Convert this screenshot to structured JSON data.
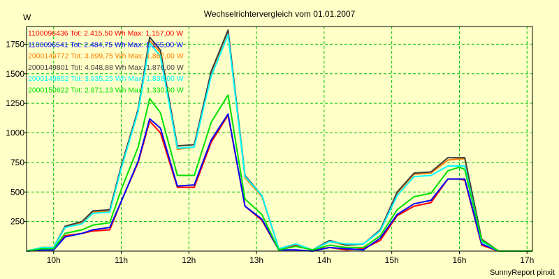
{
  "chart_data": {
    "type": "line",
    "title": "Wechselrichtervergleich vom 01.01.2007",
    "ylabel": "W",
    "xlabel": "",
    "ylim": [
      0,
      1900
    ],
    "xlim": [
      9.6,
      17.08
    ],
    "grid": true,
    "legend_position": "top-left",
    "credit": "SunnyReport pinxit",
    "x_ticks": [
      {
        "value": 10,
        "label": "10h"
      },
      {
        "value": 11,
        "label": "11h"
      },
      {
        "value": 12,
        "label": "12h"
      },
      {
        "value": 13,
        "label": "13h"
      },
      {
        "value": 14,
        "label": "14h"
      },
      {
        "value": 15,
        "label": "15h"
      },
      {
        "value": 16,
        "label": "16h"
      },
      {
        "value": 17,
        "label": "17h"
      }
    ],
    "y_ticks": [
      250,
      500,
      750,
      1000,
      1250,
      1500,
      1750
    ],
    "x": [
      9.6,
      9.83,
      10.0,
      10.17,
      10.42,
      10.58,
      10.83,
      11.0,
      11.25,
      11.42,
      11.58,
      11.83,
      12.08,
      12.33,
      12.58,
      12.83,
      13.08,
      13.33,
      13.58,
      13.83,
      14.08,
      14.33,
      14.58,
      14.83,
      15.08,
      15.33,
      15.58,
      15.83,
      16.0,
      16.08,
      16.33,
      16.58,
      16.83,
      17.08
    ],
    "series": [
      {
        "name": "1100096436",
        "legend": "1100096436 Tot: 2.415,50 Wh Max: 1.157,00 W",
        "color": "#ff0000",
        "values": [
          0,
          20,
          20,
          130,
          150,
          170,
          180,
          420,
          750,
          1100,
          1000,
          540,
          540,
          920,
          1150,
          380,
          260,
          10,
          50,
          10,
          30,
          10,
          20,
          90,
          300,
          380,
          410,
          610,
          610,
          600,
          50,
          0,
          0,
          0
        ]
      },
      {
        "name": "1100096541",
        "legend": "1100096541 Tot: 2.484,75 Wh Max: 1.165,00 W",
        "color": "#0000ff",
        "values": [
          0,
          10,
          10,
          120,
          150,
          180,
          200,
          420,
          760,
          1120,
          1040,
          550,
          560,
          940,
          1160,
          380,
          270,
          10,
          10,
          0,
          30,
          20,
          10,
          110,
          310,
          400,
          430,
          610,
          610,
          610,
          60,
          0,
          0,
          0
        ]
      },
      {
        "name": "2000149772",
        "legend": "2000149772 Tot: 3.899,75 Wh Max: 1.862,00 W",
        "color": "#ff8000",
        "values": [
          0,
          30,
          30,
          200,
          240,
          330,
          340,
          700,
          1180,
          1780,
          1680,
          860,
          880,
          1490,
          1850,
          620,
          460,
          20,
          60,
          10,
          80,
          50,
          60,
          170,
          490,
          650,
          660,
          770,
          780,
          780,
          90,
          0,
          0,
          0
        ]
      },
      {
        "name": "2000149801",
        "legend": "2000149801 Tot: 4.048,88 Wh Max: 1.876,00 W",
        "color": "#404040",
        "values": [
          0,
          30,
          30,
          210,
          250,
          340,
          350,
          720,
          1200,
          1810,
          1700,
          890,
          900,
          1520,
          1870,
          640,
          470,
          20,
          60,
          10,
          90,
          50,
          60,
          180,
          500,
          660,
          670,
          790,
          790,
          790,
          100,
          0,
          0,
          0
        ]
      },
      {
        "name": "2000149852",
        "legend": "2000149852 Tot: 3.935,25 Wh Max: 1.838,00 W",
        "color": "#00ffff",
        "values": [
          0,
          30,
          30,
          200,
          230,
          320,
          330,
          700,
          1180,
          1760,
          1650,
          870,
          880,
          1480,
          1830,
          630,
          470,
          20,
          60,
          10,
          80,
          60,
          60,
          170,
          470,
          630,
          640,
          720,
          720,
          720,
          80,
          0,
          0,
          0
        ]
      },
      {
        "name": "2000150622",
        "legend": "2000150622 Tot: 2.871,13 Wh Max: 1.330,00 W",
        "color": "#00e000",
        "values": [
          0,
          20,
          20,
          150,
          180,
          220,
          240,
          520,
          880,
          1290,
          1170,
          640,
          640,
          1090,
          1320,
          440,
          310,
          10,
          40,
          10,
          50,
          30,
          30,
          130,
          350,
          460,
          490,
          680,
          710,
          690,
          90,
          0,
          0,
          0
        ]
      }
    ]
  }
}
